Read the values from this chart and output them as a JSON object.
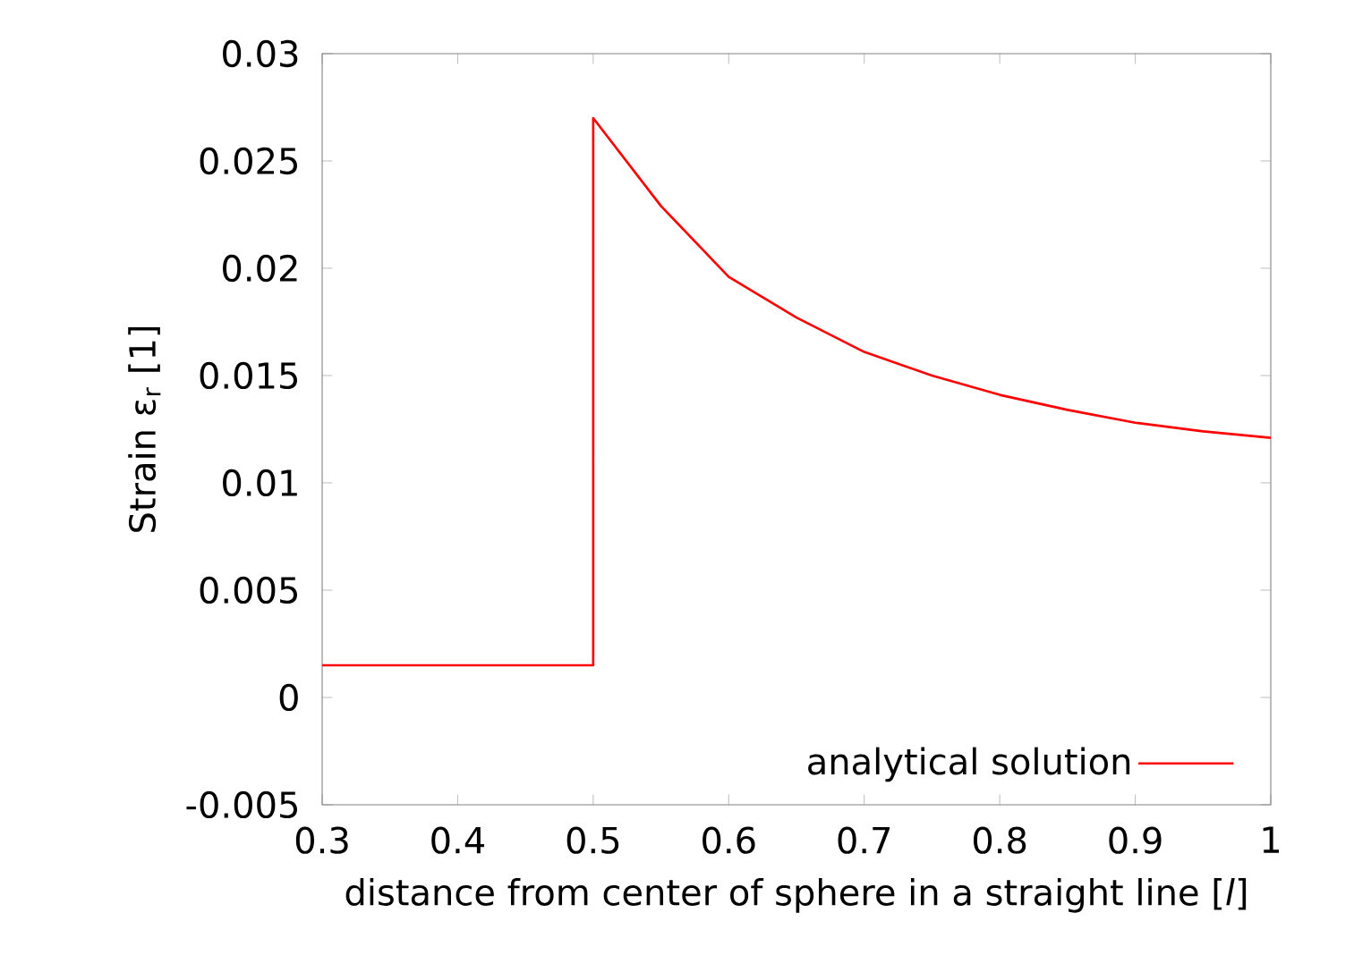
{
  "chart_data": {
    "type": "line",
    "xlabel": "distance from center of sphere in a straight line [*l*]",
    "ylabel": "Strain ε$_{r}$ [1]",
    "x": [
      0.3,
      0.5,
      0.5,
      0.55,
      0.6,
      0.65,
      0.7,
      0.75,
      0.8,
      0.85,
      0.9,
      0.95,
      1
    ],
    "series": [
      {
        "name": "analytical solution",
        "color": "#ff0000",
        "values": [
          0.0015,
          0.0015,
          0.027,
          0.0229,
          0.0196,
          0.0177,
          0.0161,
          0.015,
          0.0141,
          0.0134,
          0.0128,
          0.0124,
          0.0121
        ]
      }
    ],
    "xlim": [
      0.3,
      1
    ],
    "ylim": [
      -0.005,
      0.03
    ],
    "xticks": [
      0.3,
      0.4,
      0.5,
      0.6,
      0.7,
      0.8,
      0.9,
      1
    ],
    "yticks": [
      -0.005,
      0,
      0.005,
      0.01,
      0.015,
      0.02,
      0.025,
      0.03
    ],
    "legend": "bottom right",
    "line_style": "solid"
  }
}
